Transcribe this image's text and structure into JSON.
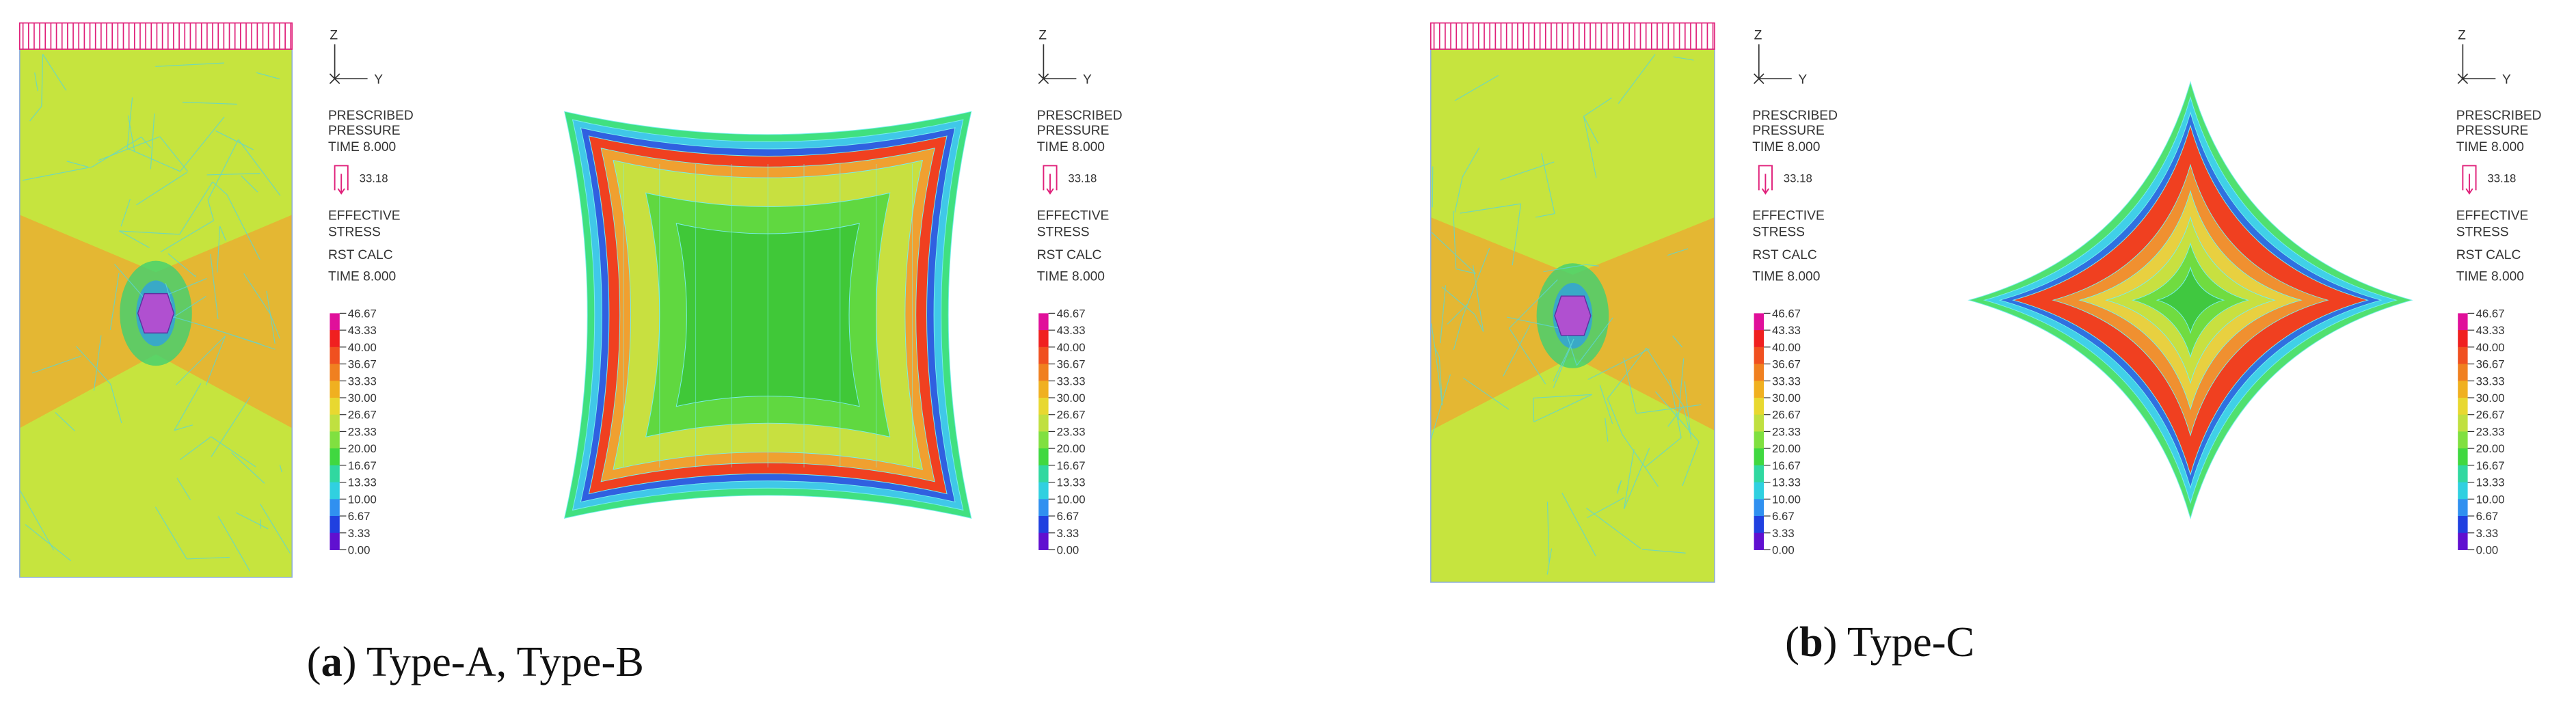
{
  "legends": [
    {
      "axis_z": "Z",
      "axis_y": "Y",
      "load_title": [
        "PRESCRIBED",
        "PRESSURE"
      ],
      "load_time": "TIME 8.000",
      "load_value": "33.18",
      "result_title": [
        "EFFECTIVE",
        "STRESS"
      ],
      "result_calc": "RST CALC",
      "result_time": "TIME 8.000",
      "scale": [
        "46.67",
        "43.33",
        "40.00",
        "36.67",
        "33.33",
        "30.00",
        "26.67",
        "23.33",
        "20.00",
        "16.67",
        "13.33",
        "10.00",
        "6.67",
        "3.33",
        "0.00"
      ]
    },
    {
      "axis_z": "Z",
      "axis_y": "Y",
      "load_title": [
        "PRESCRIBED",
        "PRESSURE"
      ],
      "load_time": "TIME 8.000",
      "load_value": "33.18",
      "result_title": [
        "EFFECTIVE",
        "STRESS"
      ],
      "result_calc": "RST CALC",
      "result_time": "TIME 8.000",
      "scale": [
        "46.67",
        "43.33",
        "40.00",
        "36.67",
        "33.33",
        "30.00",
        "26.67",
        "23.33",
        "20.00",
        "16.67",
        "13.33",
        "10.00",
        "6.67",
        "3.33",
        "0.00"
      ]
    },
    {
      "axis_z": "Z",
      "axis_y": "Y",
      "load_title": [
        "PRESCRIBED",
        "PRESSURE"
      ],
      "load_time": "TIME 8.000",
      "load_value": "33.18",
      "result_title": [
        "EFFECTIVE",
        "STRESS"
      ],
      "result_calc": "RST CALC",
      "result_time": "TIME 8.000",
      "scale": [
        "46.67",
        "43.33",
        "40.00",
        "36.67",
        "33.33",
        "30.00",
        "26.67",
        "23.33",
        "20.00",
        "16.67",
        "13.33",
        "10.00",
        "6.67",
        "3.33",
        "0.00"
      ]
    },
    {
      "axis_z": "Z",
      "axis_y": "Y",
      "load_title": [
        "PRESCRIBED",
        "PRESSURE"
      ],
      "load_time": "TIME 8.000",
      "load_value": "33.18",
      "result_title": [
        "EFFECTIVE",
        "STRESS"
      ],
      "result_calc": "RST CALC",
      "result_time": "TIME 8.000",
      "scale": [
        "46.67",
        "43.33",
        "40.00",
        "36.67",
        "33.33",
        "30.00",
        "26.67",
        "23.33",
        "20.00",
        "16.67",
        "13.33",
        "10.00",
        "6.67",
        "3.33",
        "0.00"
      ]
    }
  ],
  "captions": [
    {
      "parts": [
        "(",
        "a",
        ") Type-A,  Type-B"
      ]
    },
    {
      "parts": [
        "(",
        "b",
        ") Type-C"
      ]
    }
  ]
}
